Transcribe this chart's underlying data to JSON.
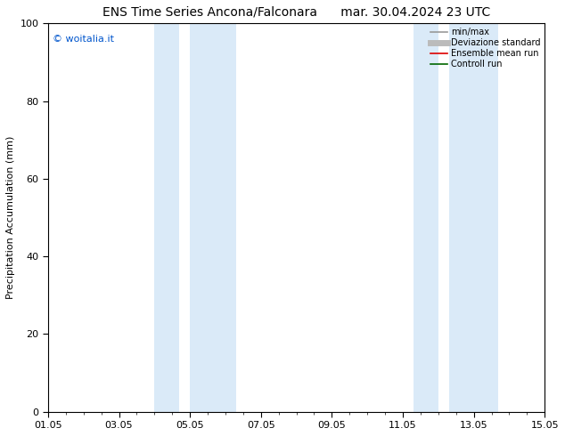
{
  "title_left": "ENS Time Series Ancona/Falconara",
  "title_right": "mar. 30.04.2024 23 UTC",
  "ylabel": "Precipitation Accumulation (mm)",
  "ylim": [
    0,
    100
  ],
  "yticks": [
    0,
    20,
    40,
    60,
    80,
    100
  ],
  "xtick_labels": [
    "01.05",
    "03.05",
    "05.05",
    "07.05",
    "09.05",
    "11.05",
    "13.05",
    "15.05"
  ],
  "xtick_positions": [
    0,
    2,
    4,
    6,
    8,
    10,
    12,
    14
  ],
  "xlim": [
    0,
    14
  ],
  "shaded_bands": [
    {
      "x_start": 3.0,
      "x_end": 3.7,
      "color": "#daeaf8"
    },
    {
      "x_start": 4.0,
      "x_end": 5.3,
      "color": "#daeaf8"
    },
    {
      "x_start": 10.3,
      "x_end": 11.0,
      "color": "#daeaf8"
    },
    {
      "x_start": 11.3,
      "x_end": 12.7,
      "color": "#daeaf8"
    }
  ],
  "watermark_text": "© woitalia.it",
  "watermark_color": "#0055cc",
  "legend_entries": [
    {
      "label": "min/max",
      "color": "#999999",
      "lw": 1.2
    },
    {
      "label": "Deviazione standard",
      "color": "#bbbbbb",
      "lw": 5
    },
    {
      "label": "Ensemble mean run",
      "color": "#dd0000",
      "lw": 1.2
    },
    {
      "label": "Controll run",
      "color": "#006600",
      "lw": 1.2
    }
  ],
  "bg_color": "#ffffff",
  "title_fontsize": 10,
  "tick_fontsize": 8,
  "ylabel_fontsize": 8,
  "watermark_fontsize": 8,
  "legend_fontsize": 7
}
